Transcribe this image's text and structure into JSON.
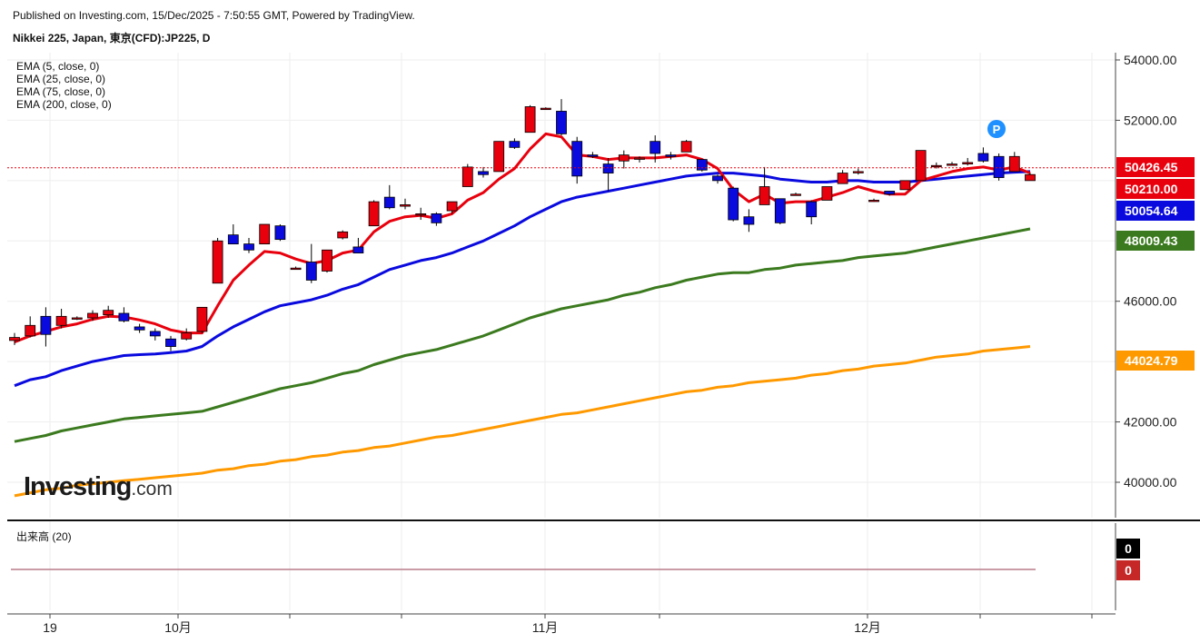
{
  "header": {
    "published": "Published on Investing.com, 15/Dec/2025 - 7:50:55 GMT, Powered by TradingView.",
    "instrument": "Nikkei 225, Japan, 東京(CFD):JP225, D"
  },
  "indicators": [
    "EMA (5, close, 0)",
    "EMA (25, close, 0)",
    "EMA (75, close, 0)",
    "EMA (200, close, 0)"
  ],
  "volume_label": "出来高 (20)",
  "logo": {
    "main": "Investing",
    "suffix": ".com"
  },
  "marker": "P",
  "colors": {
    "up": "#e8000d",
    "down": "#0a0adf",
    "ema5": "#e8000d",
    "ema25": "#0a0adf",
    "ema75": "#3b7a1e",
    "ema200": "#ff9900",
    "last_price_line": "#e8000d"
  },
  "chart_data": {
    "type": "candlestick",
    "x_tick_labels": [
      "19",
      "10月",
      "11月",
      "12月"
    ],
    "y_ticks": [
      "54000.00",
      "52000.00",
      "46000.00",
      "42000.00",
      "40000.00"
    ],
    "ylim": [
      38800,
      54400
    ],
    "price_labels": [
      {
        "text": "50426.45",
        "value": 50426.45,
        "bg": "#e8000d",
        "fg": "#ffffff"
      },
      {
        "text": "50210.00",
        "value": 50210,
        "bg": "#e8000d",
        "fg": "#ffffff"
      },
      {
        "text": "50054.64",
        "value": 50054.64,
        "bg": "#0a0adf",
        "fg": "#ffffff"
      },
      {
        "text": "48009.43",
        "value": 48009.43,
        "bg": "#3b7a1e",
        "fg": "#ffffff"
      },
      {
        "text": "44024.79",
        "value": 44024.79,
        "bg": "#ff9900",
        "fg": "#ffffff"
      }
    ],
    "volume_labels": [
      {
        "text": "0",
        "bg": "#000000",
        "fg": "#ffffff"
      },
      {
        "text": "0",
        "bg": "#c62828",
        "fg": "#ffffff"
      }
    ],
    "candles": [
      {
        "o": 44700,
        "h": 44950,
        "l": 44550,
        "c": 44800
      },
      {
        "o": 44850,
        "h": 45500,
        "l": 44800,
        "c": 45200
      },
      {
        "o": 45500,
        "h": 45800,
        "l": 44500,
        "c": 44900
      },
      {
        "o": 45200,
        "h": 45750,
        "l": 45100,
        "c": 45500
      },
      {
        "o": 45450,
        "h": 45500,
        "l": 45380,
        "c": 45450
      },
      {
        "o": 45450,
        "h": 45700,
        "l": 45350,
        "c": 45600
      },
      {
        "o": 45550,
        "h": 45850,
        "l": 45450,
        "c": 45700
      },
      {
        "o": 45600,
        "h": 45800,
        "l": 45300,
        "c": 45350
      },
      {
        "o": 45150,
        "h": 45250,
        "l": 44950,
        "c": 45050
      },
      {
        "o": 45000,
        "h": 45100,
        "l": 44700,
        "c": 44850
      },
      {
        "o": 44750,
        "h": 44850,
        "l": 44350,
        "c": 44500
      },
      {
        "o": 44750,
        "h": 45100,
        "l": 44700,
        "c": 44950
      },
      {
        "o": 45000,
        "h": 45800,
        "l": 44950,
        "c": 45800
      },
      {
        "o": 46600,
        "h": 48100,
        "l": 46600,
        "c": 48000
      },
      {
        "o": 48200,
        "h": 48550,
        "l": 47900,
        "c": 47900
      },
      {
        "o": 47900,
        "h": 48100,
        "l": 47600,
        "c": 47700
      },
      {
        "o": 47900,
        "h": 48550,
        "l": 47900,
        "c": 48550
      },
      {
        "o": 48500,
        "h": 48550,
        "l": 48000,
        "c": 48050
      },
      {
        "o": 47100,
        "h": 47150,
        "l": 47050,
        "c": 47100
      },
      {
        "o": 47300,
        "h": 47900,
        "l": 46600,
        "c": 46700
      },
      {
        "o": 47000,
        "h": 47700,
        "l": 46950,
        "c": 47700
      },
      {
        "o": 48100,
        "h": 48350,
        "l": 48050,
        "c": 48300
      },
      {
        "o": 47800,
        "h": 48100,
        "l": 47600,
        "c": 47600
      },
      {
        "o": 48500,
        "h": 49350,
        "l": 48500,
        "c": 49300
      },
      {
        "o": 49450,
        "h": 49850,
        "l": 49050,
        "c": 49100
      },
      {
        "o": 49150,
        "h": 49400,
        "l": 49050,
        "c": 49200
      },
      {
        "o": 48900,
        "h": 49100,
        "l": 48700,
        "c": 48900
      },
      {
        "o": 48900,
        "h": 48950,
        "l": 48500,
        "c": 48600
      },
      {
        "o": 49000,
        "h": 49300,
        "l": 48900,
        "c": 49300
      },
      {
        "o": 49800,
        "h": 50550,
        "l": 49800,
        "c": 50450
      },
      {
        "o": 50300,
        "h": 50450,
        "l": 50100,
        "c": 50200
      },
      {
        "o": 50300,
        "h": 51300,
        "l": 50300,
        "c": 51300
      },
      {
        "o": 51300,
        "h": 51400,
        "l": 51050,
        "c": 51100
      },
      {
        "o": 51600,
        "h": 52500,
        "l": 51600,
        "c": 52450
      },
      {
        "o": 52400,
        "h": 52430,
        "l": 52370,
        "c": 52400
      },
      {
        "o": 52300,
        "h": 52700,
        "l": 51500,
        "c": 51550
      },
      {
        "o": 51300,
        "h": 51450,
        "l": 49900,
        "c": 50150
      },
      {
        "o": 50850,
        "h": 50950,
        "l": 50750,
        "c": 50800
      },
      {
        "o": 50550,
        "h": 50750,
        "l": 49650,
        "c": 50250
      },
      {
        "o": 50650,
        "h": 51000,
        "l": 50400,
        "c": 50850
      },
      {
        "o": 50750,
        "h": 50800,
        "l": 50600,
        "c": 50750
      },
      {
        "o": 51300,
        "h": 51500,
        "l": 50600,
        "c": 50900
      },
      {
        "o": 50850,
        "h": 50950,
        "l": 50700,
        "c": 50800
      },
      {
        "o": 50950,
        "h": 51350,
        "l": 50950,
        "c": 51300
      },
      {
        "o": 50700,
        "h": 50700,
        "l": 50300,
        "c": 50350
      },
      {
        "o": 50150,
        "h": 50200,
        "l": 49900,
        "c": 50000
      },
      {
        "o": 49750,
        "h": 49800,
        "l": 48650,
        "c": 48700
      },
      {
        "o": 48800,
        "h": 49050,
        "l": 48300,
        "c": 48550
      },
      {
        "o": 49200,
        "h": 50450,
        "l": 49200,
        "c": 49800
      },
      {
        "o": 49400,
        "h": 49400,
        "l": 48550,
        "c": 48600
      },
      {
        "o": 49550,
        "h": 49600,
        "l": 49500,
        "c": 49550
      },
      {
        "o": 49300,
        "h": 49350,
        "l": 48550,
        "c": 48800
      },
      {
        "o": 49350,
        "h": 49800,
        "l": 49350,
        "c": 49800
      },
      {
        "o": 49900,
        "h": 50350,
        "l": 49900,
        "c": 50250
      },
      {
        "o": 50300,
        "h": 50400,
        "l": 50200,
        "c": 50300
      },
      {
        "o": 49350,
        "h": 49400,
        "l": 49300,
        "c": 49350
      },
      {
        "o": 49650,
        "h": 49650,
        "l": 49500,
        "c": 49550
      },
      {
        "o": 49700,
        "h": 50000,
        "l": 49700,
        "c": 50000
      },
      {
        "o": 50000,
        "h": 51000,
        "l": 50000,
        "c": 51000
      },
      {
        "o": 50500,
        "h": 50600,
        "l": 50400,
        "c": 50500
      },
      {
        "o": 50550,
        "h": 50620,
        "l": 50500,
        "c": 50550
      },
      {
        "o": 50550,
        "h": 50750,
        "l": 50500,
        "c": 50600
      },
      {
        "o": 50900,
        "h": 51100,
        "l": 50600,
        "c": 50650
      },
      {
        "o": 50800,
        "h": 50900,
        "l": 50000,
        "c": 50100
      },
      {
        "o": 50300,
        "h": 50950,
        "l": 50300,
        "c": 50800
      },
      {
        "o": 50000,
        "h": 50250,
        "l": 50000,
        "c": 50200
      }
    ],
    "ema5": [
      44650,
      44850,
      45000,
      45150,
      45250,
      45400,
      45500,
      45480,
      45380,
      45250,
      45050,
      44950,
      44950,
      45850,
      46700,
      47200,
      47650,
      47600,
      47400,
      47250,
      47350,
      47600,
      47700,
      48300,
      48650,
      48800,
      48850,
      48750,
      48900,
      49350,
      49600,
      50050,
      50400,
      51050,
      51550,
      51450,
      50850,
      50800,
      50700,
      50750,
      50750,
      50750,
      50800,
      50850,
      50700,
      50400,
      49700,
      49300,
      49550,
      49250,
      49300,
      49300,
      49450,
      49600,
      49800,
      49650,
      49550,
      49550,
      50000,
      50150,
      50300,
      50400,
      50450,
      50350,
      50450,
      50250
    ],
    "ema25": [
      43200,
      43400,
      43500,
      43700,
      43850,
      44000,
      44100,
      44200,
      44230,
      44250,
      44300,
      44350,
      44500,
      44850,
      45150,
      45400,
      45650,
      45850,
      45950,
      46050,
      46200,
      46400,
      46550,
      46800,
      47050,
      47200,
      47350,
      47450,
      47600,
      47800,
      48000,
      48250,
      48500,
      48800,
      49050,
      49300,
      49450,
      49550,
      49650,
      49750,
      49850,
      49950,
      50050,
      50150,
      50200,
      50250,
      50250,
      50200,
      50150,
      50050,
      50000,
      49950,
      49950,
      50000,
      50000,
      49950,
      49950,
      49950,
      50000,
      50050,
      50100,
      50150,
      50200,
      50250,
      50280,
      50300
    ],
    "ema75": [
      41350,
      41450,
      41550,
      41700,
      41800,
      41900,
      42000,
      42100,
      42150,
      42200,
      42250,
      42300,
      42350,
      42500,
      42650,
      42800,
      42950,
      43100,
      43200,
      43300,
      43450,
      43600,
      43700,
      43900,
      44050,
      44200,
      44300,
      44400,
      44550,
      44700,
      44850,
      45050,
      45250,
      45450,
      45600,
      45750,
      45850,
      45950,
      46050,
      46200,
      46300,
      46450,
      46550,
      46700,
      46800,
      46900,
      46950,
      46950,
      47050,
      47100,
      47200,
      47250,
      47300,
      47350,
      47450,
      47500,
      47550,
      47600,
      47700,
      47800,
      47900,
      48000,
      48100,
      48200,
      48300,
      48400
    ],
    "ema200": [
      39550,
      39650,
      39750,
      39800,
      39900,
      39950,
      40000,
      40050,
      40100,
      40150,
      40200,
      40250,
      40300,
      40400,
      40450,
      40550,
      40600,
      40700,
      40750,
      40850,
      40900,
      41000,
      41050,
      41150,
      41200,
      41300,
      41400,
      41500,
      41550,
      41650,
      41750,
      41850,
      41950,
      42050,
      42150,
      42250,
      42300,
      42400,
      42500,
      42600,
      42700,
      42800,
      42900,
      43000,
      43050,
      43150,
      43200,
      43300,
      43350,
      43400,
      43450,
      43550,
      43600,
      43700,
      43750,
      43850,
      43900,
      43950,
      44050,
      44150,
      44200,
      44250,
      44350,
      44400,
      44450,
      44500
    ]
  }
}
